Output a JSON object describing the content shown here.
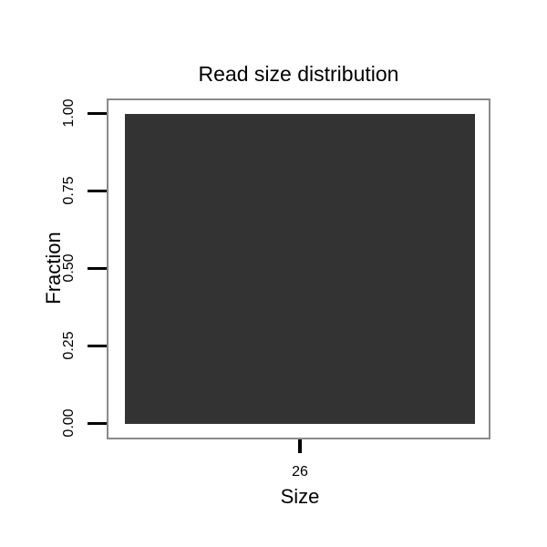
{
  "chart_data": {
    "type": "bar",
    "title": "Read size distribution",
    "xlabel": "Size",
    "ylabel": "Fraction",
    "categories": [
      "26"
    ],
    "values": [
      1.0
    ],
    "ylim": [
      0,
      1
    ],
    "yticks": [
      "0.00",
      "0.25",
      "0.50",
      "0.75",
      "1.00"
    ],
    "legend": null,
    "grid": false,
    "colors": {
      "bar": "#333333",
      "panel_border": "#8a8a8a",
      "tick": "#000000",
      "text": "#000000",
      "background": "#ffffff"
    }
  }
}
